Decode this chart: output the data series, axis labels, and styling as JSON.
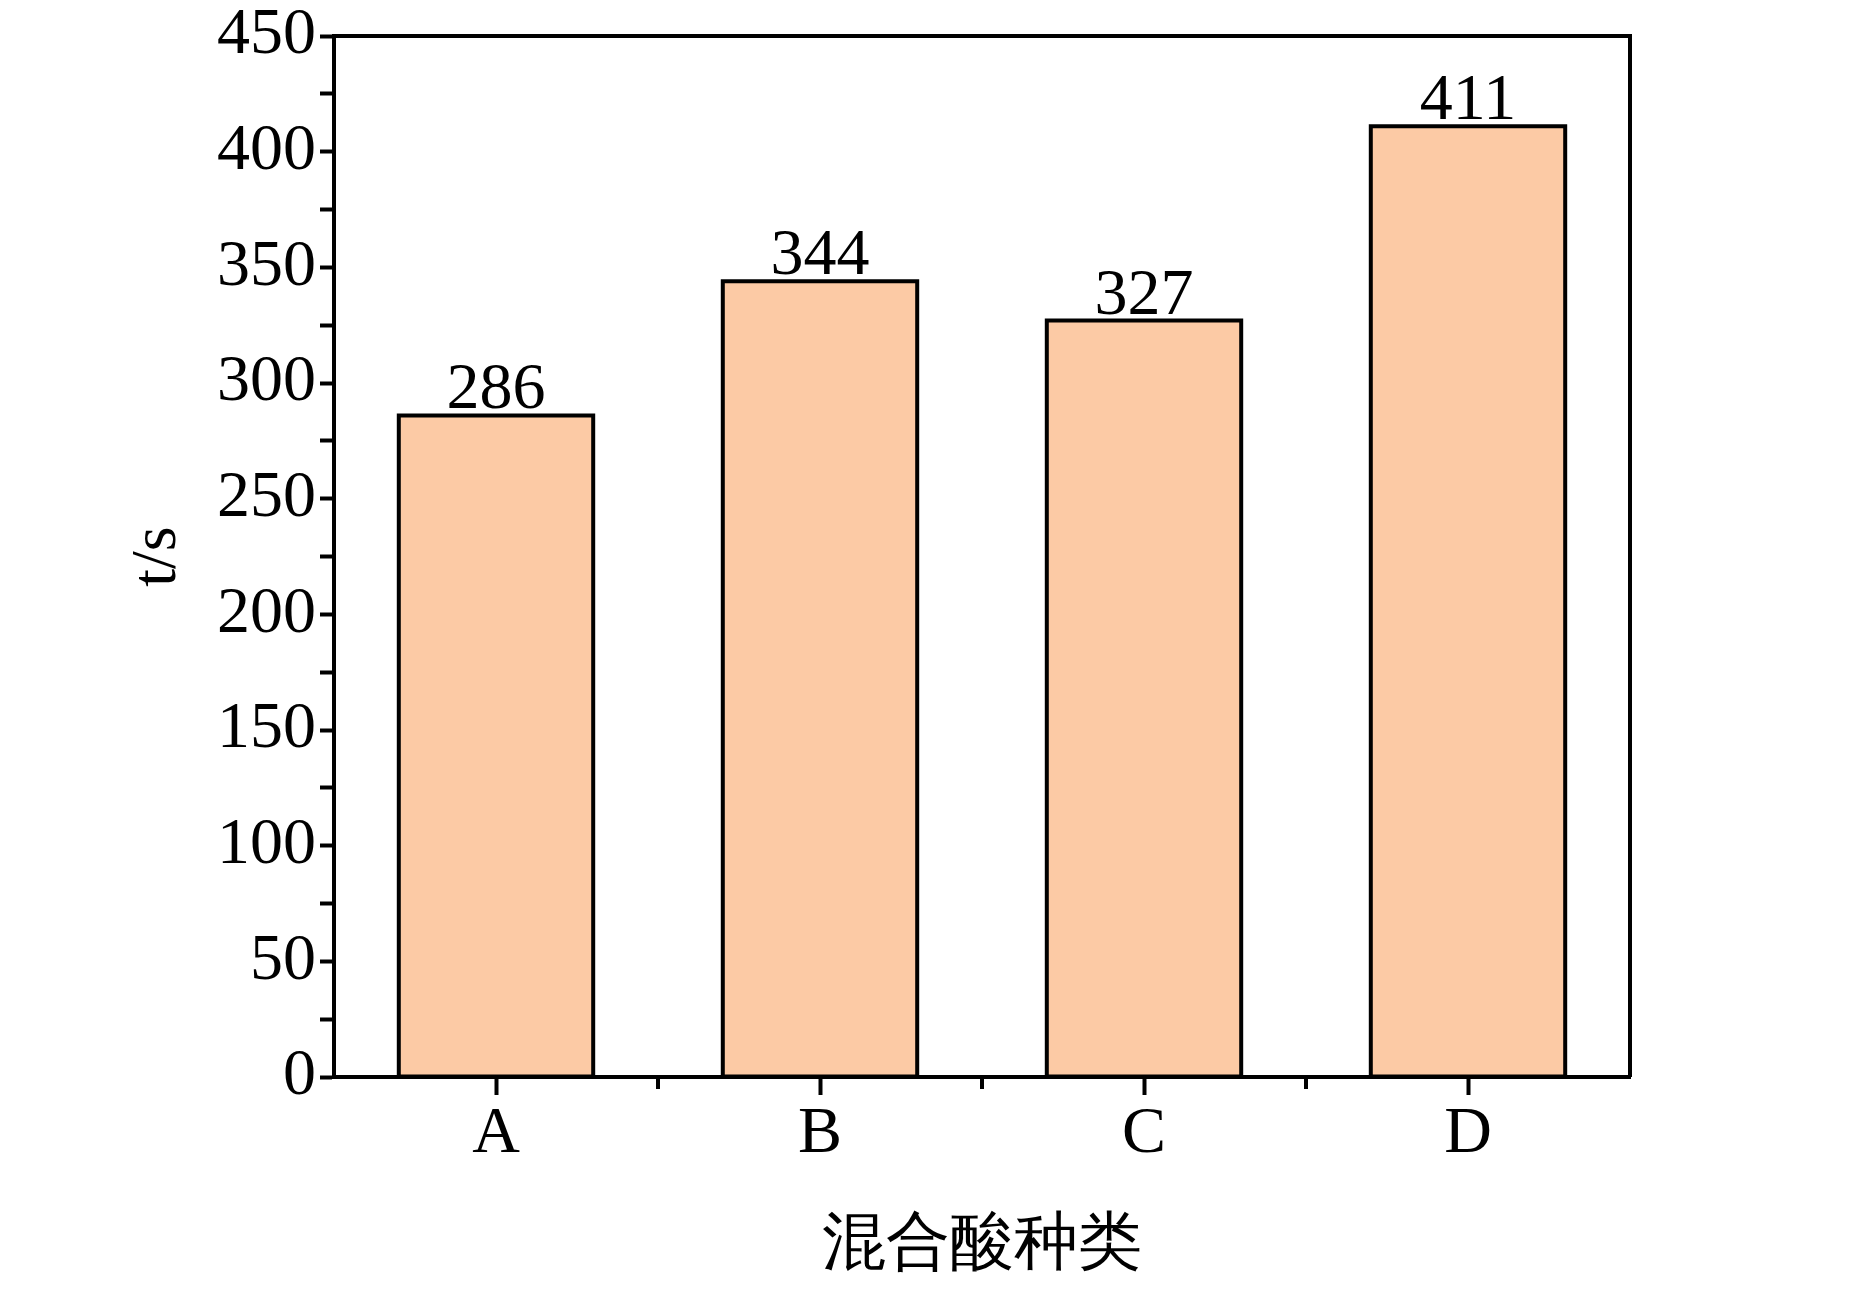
{
  "chart_data": {
    "type": "bar",
    "xlabel": "混合酸种类",
    "ylabel": "t/s",
    "categories": [
      "A",
      "B",
      "C",
      "D"
    ],
    "values": [
      286,
      344,
      327,
      411
    ],
    "color": "#fccaa5",
    "ylim": [
      0,
      450
    ],
    "yticks": [
      0,
      {
        "value": 25,
        "label": null
      },
      50,
      {
        "value": 75,
        "label": null
      },
      100,
      {
        "value": 125,
        "label": null
      },
      150,
      {
        "value": 175,
        "label": null
      },
      200,
      {
        "value": 225,
        "label": null
      },
      250,
      {
        "value": 275,
        "label": null
      },
      300,
      {
        "value": 325,
        "label": null
      },
      350,
      {
        "value": 375,
        "label": null
      },
      400,
      {
        "value": 425,
        "label": null
      },
      450
    ],
    "data_labels": true
  }
}
